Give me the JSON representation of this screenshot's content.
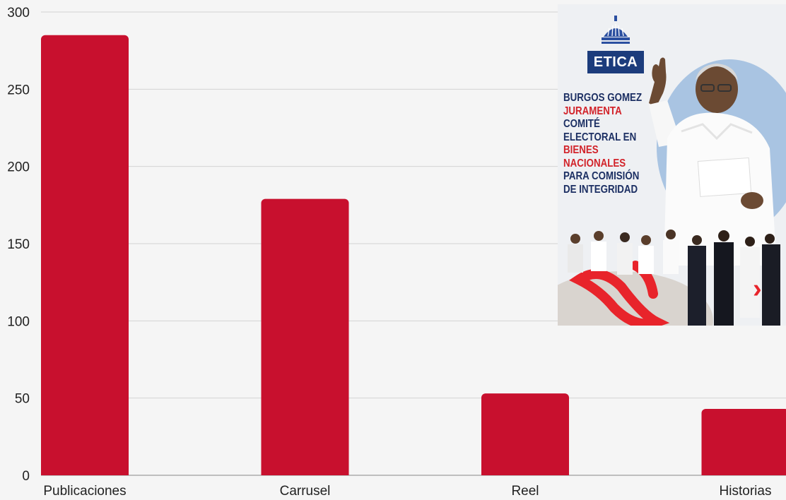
{
  "chart_data": {
    "type": "bar",
    "categories": [
      "Publicaciones",
      "Carrusel",
      "Reel",
      "Historias"
    ],
    "values": [
      285,
      179,
      53,
      43
    ],
    "ylim": [
      0,
      300
    ],
    "yticks": [
      0,
      50,
      100,
      150,
      200,
      250,
      300
    ],
    "grid": true,
    "bar_color": "#c8102e"
  },
  "inset": {
    "badge": "ETICA",
    "headline": [
      {
        "text": "BURGOS GOMEZ",
        "color": "navy"
      },
      {
        "text": "JURAMENTA",
        "color": "red"
      },
      {
        "text": "COMITÉ",
        "color": "navy"
      },
      {
        "text": "ELECTORAL EN",
        "color": "navy"
      },
      {
        "text": "BIENES",
        "color": "red"
      },
      {
        "text": "NACIONALES",
        "color": "red"
      },
      {
        "text": "PARA COMISIÓN",
        "color": "navy"
      },
      {
        "text": "DE INTEGRIDAD",
        "color": "navy"
      }
    ],
    "icons": [
      "dome-icon",
      "chevron-right-icon"
    ]
  }
}
